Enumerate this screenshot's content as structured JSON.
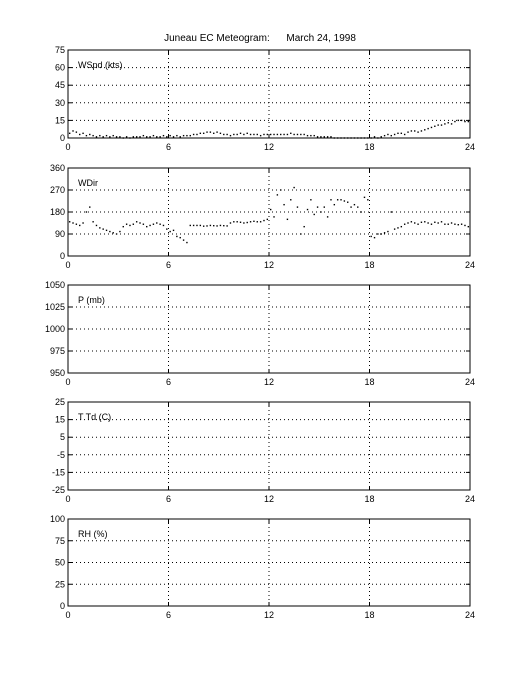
{
  "title": "Juneau EC Meteogram:      March 24, 1998",
  "colors": {
    "axis": "#000000",
    "grid": "#000000",
    "data": "#000000",
    "background": "#ffffff"
  },
  "chart_data": [
    {
      "type": "scatter",
      "panel_label": "WSpd (kts)",
      "xlim": [
        0,
        24
      ],
      "x_ticks": [
        0,
        6,
        12,
        18,
        24
      ],
      "ylim": [
        0,
        75
      ],
      "y_ticks": [
        0,
        15,
        30,
        45,
        60,
        75
      ],
      "grid": true,
      "points": [
        [
          0.1,
          4
        ],
        [
          0.3,
          6
        ],
        [
          0.5,
          5
        ],
        [
          0.7,
          3
        ],
        [
          0.9,
          4
        ],
        [
          1.1,
          2
        ],
        [
          1.3,
          3
        ],
        [
          1.5,
          2
        ],
        [
          1.7,
          1
        ],
        [
          1.9,
          2
        ],
        [
          2.1,
          1
        ],
        [
          2.3,
          2
        ],
        [
          2.5,
          1
        ],
        [
          2.7,
          2
        ],
        [
          2.9,
          1
        ],
        [
          3.1,
          1
        ],
        [
          3.3,
          0
        ],
        [
          3.5,
          1
        ],
        [
          3.7,
          0
        ],
        [
          3.9,
          1
        ],
        [
          4.1,
          1
        ],
        [
          4.3,
          1
        ],
        [
          4.5,
          2
        ],
        [
          4.7,
          1
        ],
        [
          4.9,
          1
        ],
        [
          5.1,
          2
        ],
        [
          5.3,
          1
        ],
        [
          5.5,
          1
        ],
        [
          5.7,
          2
        ],
        [
          5.9,
          1
        ],
        [
          6.1,
          2
        ],
        [
          6.3,
          1
        ],
        [
          6.5,
          2
        ],
        [
          6.7,
          1
        ],
        [
          6.9,
          2
        ],
        [
          7.1,
          2
        ],
        [
          7.3,
          2
        ],
        [
          7.5,
          3
        ],
        [
          7.7,
          3
        ],
        [
          7.9,
          4
        ],
        [
          8.1,
          4
        ],
        [
          8.3,
          5
        ],
        [
          8.5,
          5
        ],
        [
          8.7,
          4
        ],
        [
          8.9,
          5
        ],
        [
          9.1,
          4
        ],
        [
          9.3,
          3
        ],
        [
          9.5,
          3
        ],
        [
          9.7,
          2
        ],
        [
          9.9,
          3
        ],
        [
          10.1,
          3
        ],
        [
          10.3,
          4
        ],
        [
          10.5,
          3
        ],
        [
          10.7,
          4
        ],
        [
          10.9,
          3
        ],
        [
          11.1,
          3
        ],
        [
          11.3,
          3
        ],
        [
          11.5,
          2
        ],
        [
          11.7,
          3
        ],
        [
          11.9,
          3
        ],
        [
          12.1,
          3
        ],
        [
          12.3,
          3
        ],
        [
          12.5,
          3
        ],
        [
          12.7,
          3
        ],
        [
          12.9,
          3
        ],
        [
          13.1,
          3
        ],
        [
          13.3,
          4
        ],
        [
          13.5,
          3
        ],
        [
          13.7,
          3
        ],
        [
          13.9,
          3
        ],
        [
          14.1,
          3
        ],
        [
          14.3,
          2
        ],
        [
          14.5,
          2
        ],
        [
          14.7,
          2
        ],
        [
          14.9,
          1
        ],
        [
          15.1,
          1
        ],
        [
          15.3,
          1
        ],
        [
          15.5,
          1
        ],
        [
          15.7,
          1
        ],
        [
          15.9,
          0
        ],
        [
          16.1,
          0
        ],
        [
          16.3,
          0
        ],
        [
          16.5,
          0
        ],
        [
          16.7,
          0
        ],
        [
          16.9,
          0
        ],
        [
          17.1,
          0
        ],
        [
          17.3,
          0
        ],
        [
          17.5,
          0
        ],
        [
          17.7,
          0
        ],
        [
          17.9,
          0
        ],
        [
          18.1,
          0
        ],
        [
          18.3,
          1
        ],
        [
          18.5,
          0
        ],
        [
          18.7,
          1
        ],
        [
          18.9,
          2
        ],
        [
          19.1,
          3
        ],
        [
          19.3,
          2
        ],
        [
          19.5,
          3
        ],
        [
          19.7,
          4
        ],
        [
          19.9,
          4
        ],
        [
          20.1,
          3
        ],
        [
          20.3,
          5
        ],
        [
          20.5,
          6
        ],
        [
          20.7,
          6
        ],
        [
          20.9,
          5
        ],
        [
          21.1,
          6
        ],
        [
          21.3,
          7
        ],
        [
          21.5,
          8
        ],
        [
          21.7,
          9
        ],
        [
          21.9,
          10
        ],
        [
          22.1,
          11
        ],
        [
          22.3,
          11
        ],
        [
          22.5,
          12
        ],
        [
          22.7,
          13
        ],
        [
          22.9,
          12
        ],
        [
          23.1,
          14
        ],
        [
          23.3,
          15
        ],
        [
          23.5,
          15
        ],
        [
          23.7,
          14
        ],
        [
          23.9,
          14
        ]
      ]
    },
    {
      "type": "scatter",
      "panel_label": "WDir",
      "xlim": [
        0,
        24
      ],
      "x_ticks": [
        0,
        6,
        12,
        18,
        24
      ],
      "ylim": [
        0,
        360
      ],
      "y_ticks": [
        0,
        90,
        180,
        270,
        360
      ],
      "grid": true,
      "points": [
        [
          0.1,
          140
        ],
        [
          0.3,
          135
        ],
        [
          0.5,
          130
        ],
        [
          0.7,
          125
        ],
        [
          0.9,
          135
        ],
        [
          1.1,
          180
        ],
        [
          1.3,
          200
        ],
        [
          1.5,
          140
        ],
        [
          1.7,
          125
        ],
        [
          1.9,
          115
        ],
        [
          2.1,
          110
        ],
        [
          2.3,
          105
        ],
        [
          2.5,
          100
        ],
        [
          2.7,
          95
        ],
        [
          2.9,
          90
        ],
        [
          3.1,
          100
        ],
        [
          3.3,
          120
        ],
        [
          3.5,
          130
        ],
        [
          3.7,
          125
        ],
        [
          3.9,
          130
        ],
        [
          4.1,
          140
        ],
        [
          4.3,
          135
        ],
        [
          4.5,
          130
        ],
        [
          4.7,
          120
        ],
        [
          4.9,
          125
        ],
        [
          5.1,
          130
        ],
        [
          5.3,
          135
        ],
        [
          5.5,
          130
        ],
        [
          5.7,
          125
        ],
        [
          5.9,
          110
        ],
        [
          6.1,
          100
        ],
        [
          6.3,
          105
        ],
        [
          6.5,
          80
        ],
        [
          6.7,
          75
        ],
        [
          6.9,
          65
        ],
        [
          7.1,
          55
        ],
        [
          7.3,
          125
        ],
        [
          7.5,
          125
        ],
        [
          7.7,
          125
        ],
        [
          7.9,
          125
        ],
        [
          8.1,
          122
        ],
        [
          8.3,
          123
        ],
        [
          8.5,
          125
        ],
        [
          8.7,
          124
        ],
        [
          8.9,
          123
        ],
        [
          9.1,
          125
        ],
        [
          9.3,
          124
        ],
        [
          9.5,
          123
        ],
        [
          9.7,
          135
        ],
        [
          9.9,
          140
        ],
        [
          10.1,
          140
        ],
        [
          10.3,
          138
        ],
        [
          10.5,
          135
        ],
        [
          10.7,
          137
        ],
        [
          10.9,
          140
        ],
        [
          11.1,
          142
        ],
        [
          11.3,
          140
        ],
        [
          11.5,
          140
        ],
        [
          11.7,
          145
        ],
        [
          11.9,
          150
        ],
        [
          12.1,
          190
        ],
        [
          12.3,
          160
        ],
        [
          12.5,
          250
        ],
        [
          12.7,
          270
        ],
        [
          12.9,
          210
        ],
        [
          13.1,
          150
        ],
        [
          13.3,
          230
        ],
        [
          13.5,
          280
        ],
        [
          13.7,
          200
        ],
        [
          13.9,
          90
        ],
        [
          14.1,
          120
        ],
        [
          14.3,
          190
        ],
        [
          14.5,
          230
        ],
        [
          14.7,
          170
        ],
        [
          14.9,
          200
        ],
        [
          15.1,
          180
        ],
        [
          15.3,
          200
        ],
        [
          15.5,
          160
        ],
        [
          15.7,
          230
        ],
        [
          15.9,
          210
        ],
        [
          16.1,
          230
        ],
        [
          16.3,
          230
        ],
        [
          16.5,
          225
        ],
        [
          16.7,
          220
        ],
        [
          16.9,
          200
        ],
        [
          17.1,
          210
        ],
        [
          17.3,
          200
        ],
        [
          17.5,
          180
        ],
        [
          17.7,
          240
        ],
        [
          17.9,
          230
        ],
        [
          18.1,
          80
        ],
        [
          18.3,
          75
        ],
        [
          18.5,
          90
        ],
        [
          18.7,
          90
        ],
        [
          18.9,
          95
        ],
        [
          19.1,
          100
        ],
        [
          19.3,
          180
        ],
        [
          19.5,
          110
        ],
        [
          19.7,
          115
        ],
        [
          19.9,
          120
        ],
        [
          20.1,
          130
        ],
        [
          20.3,
          135
        ],
        [
          20.5,
          140
        ],
        [
          20.7,
          135
        ],
        [
          20.9,
          130
        ],
        [
          21.1,
          138
        ],
        [
          21.3,
          140
        ],
        [
          21.5,
          135
        ],
        [
          21.7,
          130
        ],
        [
          21.9,
          138
        ],
        [
          22.1,
          135
        ],
        [
          22.3,
          140
        ],
        [
          22.5,
          130
        ],
        [
          22.7,
          130
        ],
        [
          22.9,
          135
        ],
        [
          23.1,
          130
        ],
        [
          23.3,
          128
        ],
        [
          23.5,
          130
        ],
        [
          23.7,
          125
        ],
        [
          23.9,
          120
        ]
      ]
    },
    {
      "type": "scatter",
      "panel_label": "P (mb)",
      "xlim": [
        0,
        24
      ],
      "x_ticks": [
        0,
        6,
        12,
        18,
        24
      ],
      "ylim": [
        950,
        1050
      ],
      "y_ticks": [
        950,
        975,
        1000,
        1025,
        1050
      ],
      "grid": true,
      "points": []
    },
    {
      "type": "scatter",
      "panel_label": "T Td (C)",
      "xlim": [
        0,
        24
      ],
      "x_ticks": [
        0,
        6,
        12,
        18,
        24
      ],
      "ylim": [
        -25,
        25
      ],
      "y_ticks": [
        -25,
        -15,
        -5,
        5,
        15,
        25
      ],
      "grid": true,
      "points": []
    },
    {
      "type": "scatter",
      "panel_label": "RH (%)",
      "xlim": [
        0,
        24
      ],
      "x_ticks": [
        0,
        6,
        12,
        18,
        24
      ],
      "ylim": [
        0,
        100
      ],
      "y_ticks": [
        0,
        25,
        50,
        75,
        100
      ],
      "grid": true,
      "points": []
    }
  ]
}
